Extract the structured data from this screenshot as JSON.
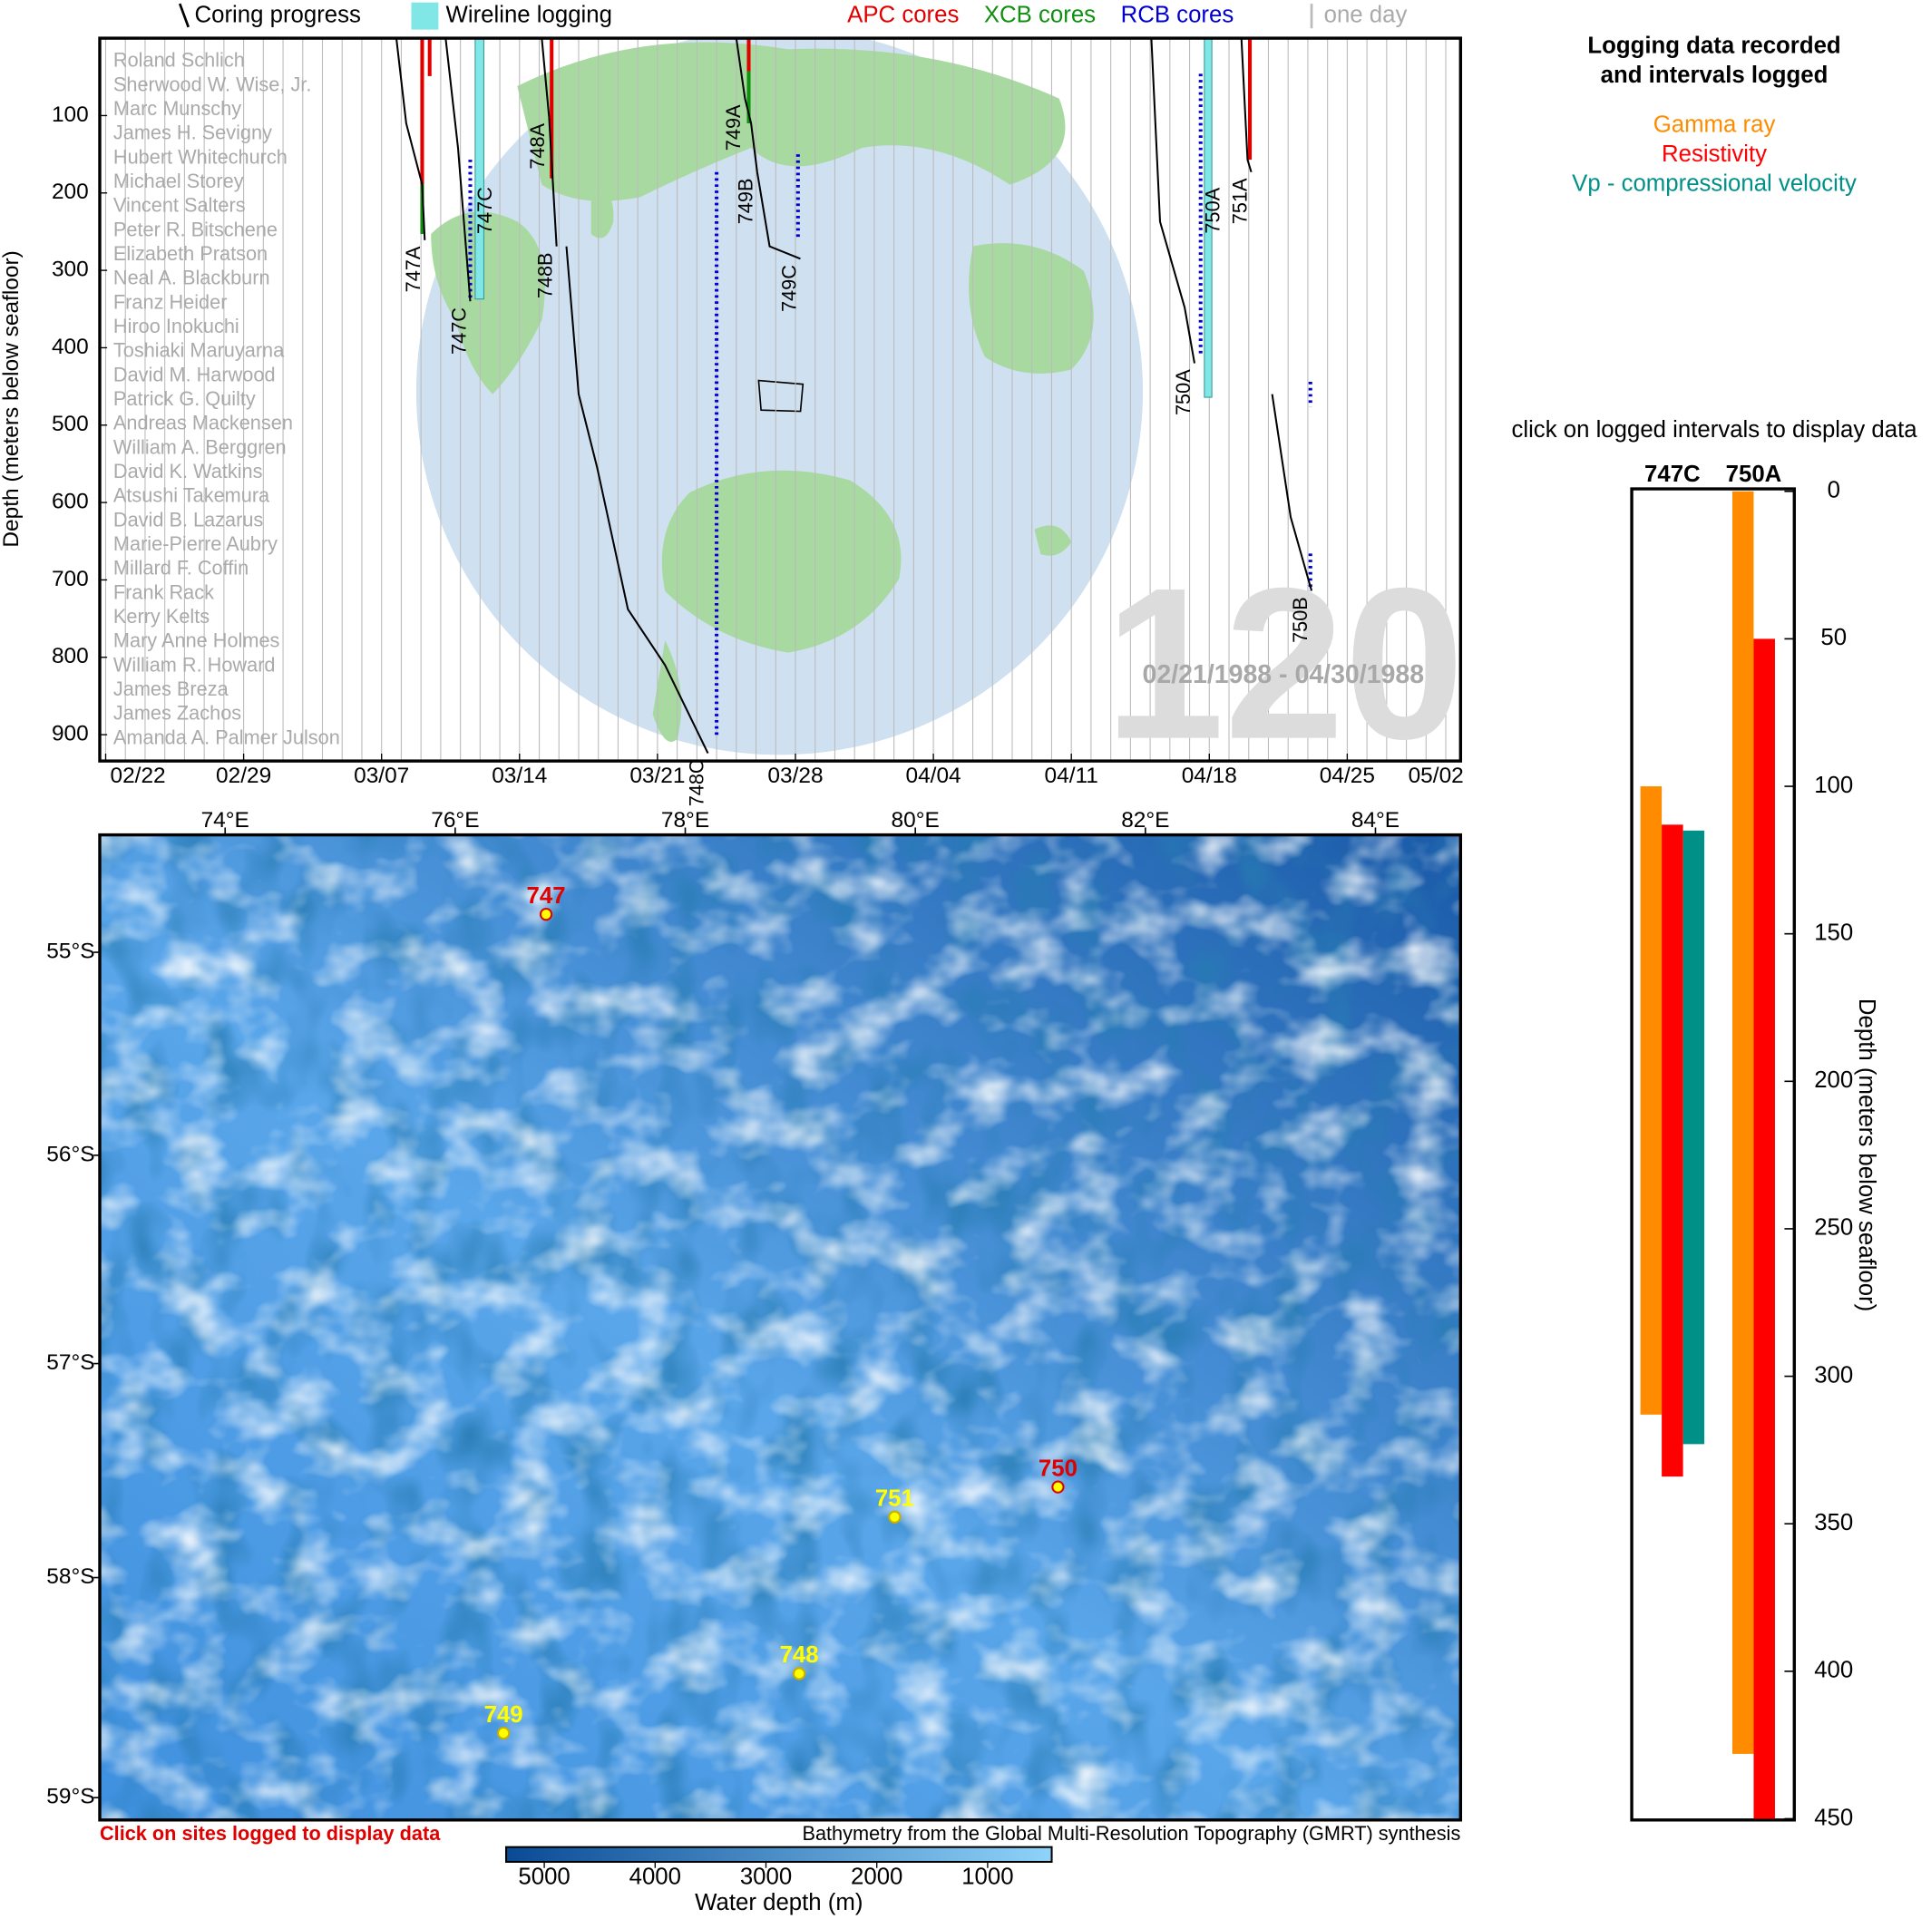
{
  "chart_data": [
    {
      "type": "timeline",
      "ylabel": "Depth (meters below seafloor)",
      "xlim": [
        0.7,
        69.75
      ],
      "ylim": [
        0,
        934
      ],
      "xticks": [
        {
          "value": 1,
          "label": "02/22"
        },
        {
          "value": 8,
          "label": "02/29"
        },
        {
          "value": 15,
          "label": "03/07"
        },
        {
          "value": 22,
          "label": "03/14"
        },
        {
          "value": 29,
          "label": "03/21"
        },
        {
          "value": 36,
          "label": "03/28"
        },
        {
          "value": 43,
          "label": "04/04"
        },
        {
          "value": 50,
          "label": "04/11"
        },
        {
          "value": 57,
          "label": "04/18"
        },
        {
          "value": 64,
          "label": "04/25"
        },
        {
          "value": 71,
          "label": "05/02"
        }
      ],
      "yticks": [
        100,
        200,
        300,
        400,
        500,
        600,
        700,
        800,
        900
      ],
      "progress": {
        "name": "Coring progress",
        "color": "#000000",
        "holes": [
          {
            "name": "747A",
            "x": [
              15.75,
              16.25,
              17.06,
              17.19
            ],
            "y": [
              0,
              110,
              189,
              261
            ]
          },
          {
            "name": "747C",
            "x": [
              18.25,
              18.88,
              19.5
            ],
            "y": [
              0,
              142,
              340
            ]
          },
          {
            "name": "748A",
            "x": [
              23.13,
              23.5
            ],
            "y": [
              0,
              102
            ]
          },
          {
            "name": "748B",
            "x": [
              23.5,
              23.88
            ],
            "y": [
              102,
              269
            ]
          },
          {
            "name": "748C",
            "x": [
              24.38,
              25,
              25.94,
              27.5,
              29.38,
              31.56
            ],
            "y": [
              269,
              460,
              555,
              738,
              810,
              924
            ]
          },
          {
            "name": "749A",
            "x": [
              33.0,
              33.44
            ],
            "y": [
              0,
              78
            ]
          },
          {
            "name": "749B",
            "x": [
              33.44,
              33.75,
              34.06
            ],
            "y": [
              78,
              110,
              173
            ]
          },
          {
            "name": "749C",
            "x": [
              34.06,
              34.69,
              36.25
            ],
            "y": [
              173,
              269,
              285
            ]
          },
          {
            "name": "750A",
            "x": [
              54.06,
              54.5,
              55.75,
              56.25
            ],
            "y": [
              0,
              237,
              348,
              420
            ]
          },
          {
            "name": "751A",
            "x": [
              58.63,
              58.94,
              59.13
            ],
            "y": [
              0,
              157,
              173
            ]
          },
          {
            "name": "750B",
            "x": [
              60.19,
              61.13,
              62.19
            ],
            "y": [
              460,
              619,
              714
            ]
          }
        ]
      },
      "logging": {
        "name": "Wireline logging",
        "color": "#80e6e6",
        "intervals": [
          {
            "hole": "747C",
            "x": [
              19.75,
              20.19
            ],
            "top": 0,
            "bottom": 337
          },
          {
            "hole": "750A",
            "x": [
              56.75,
              57.13
            ],
            "top": 0,
            "bottom": 464
          }
        ]
      },
      "core_types": [
        {
          "name": "APC cores",
          "color": "#e00000",
          "dashed": false,
          "cores": [
            {
              "x": 17.06,
              "top": 0,
              "bottom": 189
            },
            {
              "x": 17.44,
              "top": 0,
              "bottom": 49
            },
            {
              "x": 23.63,
              "top": 0,
              "bottom": 181
            },
            {
              "x": 33.63,
              "top": 0,
              "bottom": 43
            },
            {
              "x": 59.06,
              "top": 0,
              "bottom": 157
            }
          ]
        },
        {
          "name": "XCB cores",
          "color": "#109010",
          "dashed": false,
          "cores": [
            {
              "x": 17.06,
              "top": 189,
              "bottom": 253
            },
            {
              "x": 33.63,
              "top": 43,
              "bottom": 110
            }
          ]
        },
        {
          "name": "RCB cores",
          "color": "#0000d0",
          "dashed": true,
          "cores": [
            {
              "x": 19.5,
              "top": 157,
              "bottom": 340
            },
            {
              "x": 32.0,
              "top": 173,
              "bottom": 905
            },
            {
              "x": 36.13,
              "top": 150,
              "bottom": 261
            },
            {
              "x": 56.56,
              "top": 46,
              "bottom": 412
            },
            {
              "x": 62.13,
              "top": 444,
              "bottom": 476
            },
            {
              "x": 62.13,
              "top": 666,
              "bottom": 714
            }
          ]
        }
      ],
      "day_grid": {
        "name": "one day",
        "step": 1,
        "color": "#bbbbbb"
      },
      "participants": [
        "Roland Schlich",
        "Sherwood W. Wise, Jr.",
        "Marc Munschy",
        "James H. Sevigny",
        "Hubert Whitechurch",
        "Michael Storey",
        "Vincent Salters",
        "Peter R. Bitschene",
        "Elizabeth Pratson",
        "Neal A. Blackburn",
        "Franz Heider",
        "Hiroo Inokuchi",
        "Toshiaki Maruyarna",
        "David M. Harwood",
        "Patrick G. Quilty",
        "Andreas Mackensen",
        "William A. Berggren",
        "David K. Watkins",
        "Atsushi Takemura",
        "David B. Lazarus",
        "Marie-Pierre Aubry",
        "Millard F. Coffin",
        "Frank Rack",
        "Kerry Kelts",
        "Mary Anne Holmes",
        "William R. Howard",
        "James Breza",
        "James Zachos",
        "Amanda A. Palmer Julson"
      ],
      "expedition": "120",
      "date_range": "02/21/1988 - 04/30/1988"
    },
    {
      "type": "map",
      "projection": "mercator",
      "xlim": [
        72.91,
        84.74
      ],
      "ylim": [
        -59.1,
        -54.41
      ],
      "xticks": [
        {
          "value": 74,
          "label": "74°E"
        },
        {
          "value": 76,
          "label": "76°E"
        },
        {
          "value": 78,
          "label": "78°E"
        },
        {
          "value": 80,
          "label": "80°E"
        },
        {
          "value": 82,
          "label": "82°E"
        },
        {
          "value": 84,
          "label": "84°E"
        }
      ],
      "yticks": [
        {
          "value": -55,
          "label": "55°S"
        },
        {
          "value": -56,
          "label": "56°S"
        },
        {
          "value": -57,
          "label": "57°S"
        },
        {
          "value": -58,
          "label": "58°S"
        },
        {
          "value": -59,
          "label": "59°S"
        }
      ],
      "site_color": "#ffff00",
      "logged_color": "#e00000",
      "sites": [
        {
          "name": "747",
          "lon": 76.79,
          "lat": -54.81,
          "logged": true
        },
        {
          "name": "748",
          "lon": 78.99,
          "lat": -58.44,
          "logged": false
        },
        {
          "name": "749",
          "lon": 76.42,
          "lat": -58.71,
          "logged": false
        },
        {
          "name": "750",
          "lon": 81.24,
          "lat": -57.58,
          "logged": true
        },
        {
          "name": "751",
          "lon": 79.82,
          "lat": -57.72,
          "logged": false
        }
      ],
      "note": "Click on sites logged to display data",
      "source": "Bathymetry from the Global Multi-Resolution Topography (GMRT) synthesis",
      "colorbar": {
        "label": "Water depth (m)",
        "lim": [
          5344,
          422
        ],
        "ticks": [
          5000,
          4000,
          3000,
          2000,
          1000
        ],
        "colors": [
          "#0a4a95",
          "#8fd3fa"
        ]
      }
    },
    {
      "type": "range-bar",
      "title_lines": [
        "Logging data recorded",
        "and intervals logged"
      ],
      "hint": "click on logged intervals to display data",
      "categories": [
        "747C",
        "750A"
      ],
      "ylabel": "Depth (meters below seafloor)",
      "ylim": [
        0,
        450
      ],
      "yticks": [
        0,
        50,
        100,
        150,
        200,
        250,
        300,
        350,
        400,
        450
      ],
      "series": [
        {
          "name": "Gamma ray",
          "color": "#ff8c00",
          "values": [
            [
              100,
              313
            ],
            [
              0,
              428
            ]
          ]
        },
        {
          "name": "Resistivity",
          "color": "#ff0000",
          "values": [
            [
              113,
              334
            ],
            [
              50,
              450
            ]
          ]
        },
        {
          "name": "Vp - compressional velocity",
          "color": "#009088",
          "values": [
            [
              115,
              323
            ],
            null
          ]
        }
      ]
    }
  ]
}
